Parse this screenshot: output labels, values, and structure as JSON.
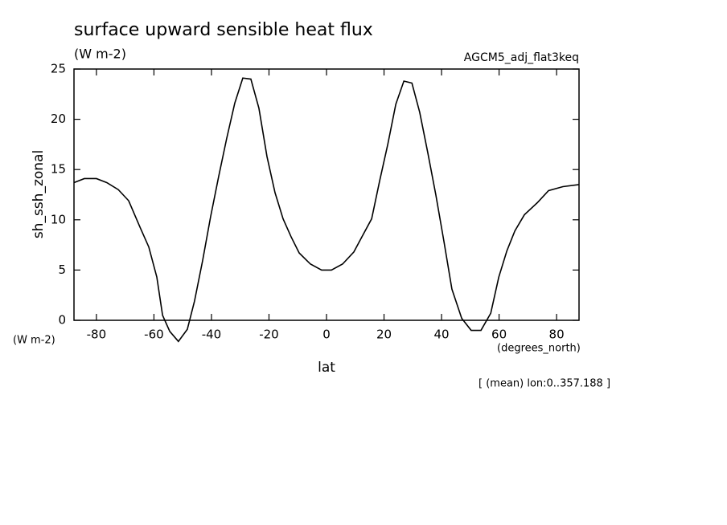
{
  "chart_data": {
    "type": "line",
    "title": "surface upward sensible heat flux",
    "subtitle": "(W m-2)",
    "run_label": "AGCM5_adj_flat3keq",
    "y_label": "sh_ssh_zonal",
    "y_units": "(W m-2)",
    "x_label": "lat",
    "x_units": "(degrees_north)",
    "note": "[ (mean) lon:0..357.188 ]",
    "x": [
      -87.8,
      -84.2,
      -80,
      -76.4,
      -72.4,
      -68.8,
      -64.9,
      -61.8,
      -59,
      -57,
      -54.5,
      -51.5,
      -48.4,
      -45.9,
      -43.1,
      -40.3,
      -37.5,
      -34.7,
      -31.9,
      -29.1,
      -26.3,
      -23.5,
      -20.7,
      -17.9,
      -15.1,
      -12.3,
      -9.5,
      -5.6,
      -1.7,
      1.7,
      5.6,
      9.5,
      12.3,
      15.7,
      18.5,
      21.3,
      24.1,
      26.9,
      29.7,
      32.4,
      35.2,
      38,
      40.8,
      43.6,
      47,
      50.3,
      53.7,
      57.1,
      59.9,
      62.7,
      65.5,
      68.8,
      73.3,
      77.2,
      82.2,
      87.8
    ],
    "series": [
      {
        "name": "sh_ssh_zonal",
        "color": "#000000",
        "values": [
          13.7,
          14.1,
          14.1,
          13.7,
          13.0,
          11.9,
          9.3,
          7.3,
          4.3,
          0.5,
          -1.1,
          -2.1,
          -0.9,
          1.9,
          5.9,
          10.3,
          14.3,
          18.1,
          21.6,
          24.1,
          24.0,
          21.1,
          16.3,
          12.7,
          10.1,
          8.3,
          6.7,
          5.6,
          5.0,
          5.0,
          5.6,
          6.8,
          8.3,
          10.1,
          13.9,
          17.5,
          21.5,
          23.8,
          23.6,
          20.7,
          16.7,
          12.5,
          7.9,
          3.1,
          0.2,
          -1.0,
          -1.0,
          0.7,
          4.3,
          6.9,
          8.9,
          10.5,
          11.7,
          12.9,
          13.3,
          13.5
        ]
      }
    ],
    "xlim": [
      -87.8,
      87.8
    ],
    "xticks": [
      -80,
      -60,
      -40,
      -20,
      0,
      20,
      40,
      60,
      80
    ],
    "ylim": [
      0,
      25
    ],
    "yticks": [
      0,
      5,
      10,
      15,
      20,
      25
    ]
  }
}
